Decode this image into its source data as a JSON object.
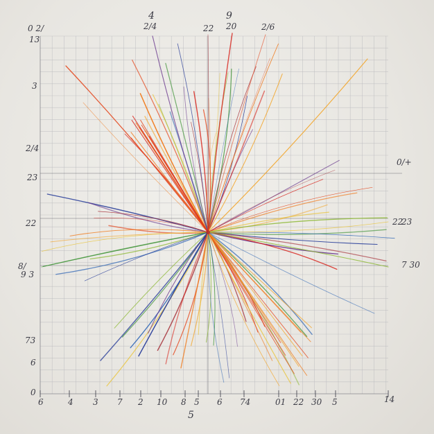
{
  "colors": {
    "paper": "#ecebe6",
    "grid": "#b9b9bd",
    "axis": "#4a4a55",
    "rays": [
      "#d8231b",
      "#e4481f",
      "#f07b1e",
      "#f3a52a",
      "#e9c43a",
      "#8fba3a",
      "#4c9a44",
      "#3b6fb8",
      "#2a3f9a",
      "#6b3a8f",
      "#a8353e"
    ]
  },
  "labels": {
    "top": {
      "a": "4",
      "b": "2/4",
      "c": "22",
      "d": "9",
      "e": "20",
      "f": "2/6"
    },
    "left": {
      "a": "0 2/",
      "b": "13",
      "c": "3",
      "d": "2/4",
      "e": "23",
      "f": "22",
      "g": "8/",
      "h": "9 3",
      "i": "73",
      "j": "6",
      "k": "0"
    },
    "right": {
      "a": "0/+",
      "b": "22",
      "c": "23",
      "d": "7 30"
    },
    "bottom": {
      "a": "6",
      "b": "4",
      "c": "3",
      "d": "7",
      "e": "2",
      "f": "10",
      "g": "8",
      "h": "5",
      "i": "6",
      "j": "74",
      "k": "01",
      "l": "22",
      "m": "30",
      "n": "5",
      "o": "14",
      "p": "5"
    }
  }
}
